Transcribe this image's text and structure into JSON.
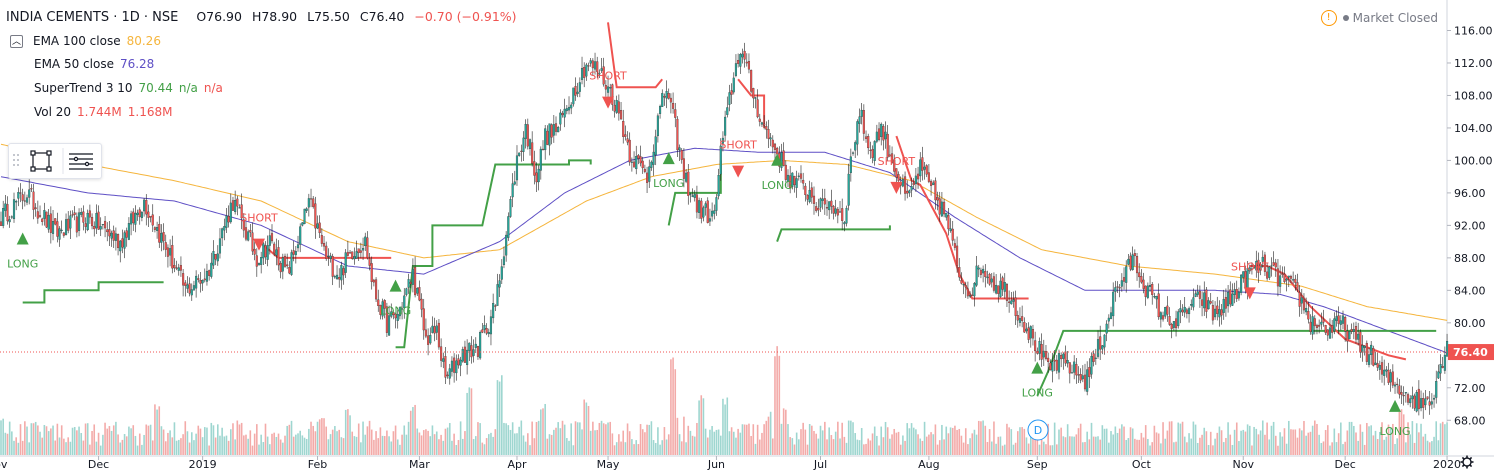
{
  "header": {
    "symbol": "INDIA CEMENTS · 1D · NSE",
    "open": "O76.90",
    "high": "H78.90",
    "low": "L75.50",
    "close": "C76.40",
    "change": "−0.70 (−0.91%)"
  },
  "market_status": {
    "icon": "warning-icon",
    "label": "Market Closed"
  },
  "indicators": [
    {
      "toggle": "chevron-up-icon",
      "label": "EMA 100 close",
      "value": "80.26",
      "color": "#f5b53d"
    },
    {
      "label": "EMA 50 close",
      "value": "76.28",
      "color": "#5e4fc5"
    },
    {
      "label": "SuperTrend 3 10",
      "value": "70.44",
      "value2": "n/a",
      "value3": "n/a",
      "color": "#43a047",
      "color2": "#ef5350"
    },
    {
      "label": "Vol 20",
      "value": "1.744M",
      "value2": "1.168M",
      "color": "#ef5350"
    }
  ],
  "toolbox": {
    "icons": [
      "grip-icon",
      "rectangle-icon",
      "lines-icon"
    ]
  },
  "last_price_label": "76.40",
  "dividend_marker": "D",
  "chart_data": {
    "type": "candlestick",
    "title": "INDIA CEMENTS · 1D · NSE",
    "x_axis": {
      "ticks": [
        "Nov",
        "Dec",
        "2019",
        "Feb",
        "Mar",
        "Apr",
        "May",
        "Jun",
        "Jul",
        "Aug",
        "Sep",
        "Oct",
        "Nov",
        "Dec",
        "2020"
      ]
    },
    "y_axis": {
      "ticks": [
        "116.00",
        "112.00",
        "108.00",
        "104.00",
        "100.00",
        "96.00",
        "92.00",
        "88.00",
        "84.00",
        "80.00",
        "76.00",
        "72.00",
        "68.00"
      ],
      "range": [
        66.5,
        118.5
      ],
      "side": "right"
    },
    "last_close": 76.4,
    "colors": {
      "up": "#26a69a",
      "down": "#ef5350",
      "ema100": "#f5b53d",
      "ema50": "#5e4fc5",
      "st_up": "#43a047",
      "st_down": "#ef5350",
      "vol_up": "#9ed6d0",
      "vol_down": "#f3aaa8"
    },
    "close_path": [
      [
        0,
        93
      ],
      [
        12,
        96
      ],
      [
        25,
        91
      ],
      [
        40,
        93
      ],
      [
        55,
        90
      ],
      [
        66,
        95
      ],
      [
        80,
        87
      ],
      [
        85,
        84
      ],
      [
        95,
        86
      ],
      [
        107,
        95
      ],
      [
        118,
        88
      ],
      [
        124,
        90
      ],
      [
        132,
        86
      ],
      [
        138,
        91
      ],
      [
        142,
        95
      ],
      [
        150,
        88
      ],
      [
        156,
        86
      ],
      [
        162,
        89
      ],
      [
        168,
        90
      ],
      [
        172,
        84
      ],
      [
        178,
        80
      ],
      [
        183,
        81
      ],
      [
        190,
        86
      ],
      [
        196,
        78
      ],
      [
        201,
        79
      ],
      [
        205,
        73
      ],
      [
        212,
        76
      ],
      [
        220,
        77
      ],
      [
        228,
        82
      ],
      [
        234,
        93
      ],
      [
        238,
        100
      ],
      [
        242,
        104
      ],
      [
        247,
        98
      ],
      [
        251,
        103
      ],
      [
        257,
        104
      ],
      [
        263,
        108
      ],
      [
        270,
        112
      ],
      [
        276,
        111
      ],
      [
        282,
        108
      ],
      [
        286,
        105
      ],
      [
        290,
        101
      ],
      [
        298,
        98
      ],
      [
        303,
        105
      ],
      [
        307,
        109
      ],
      [
        311,
        104
      ],
      [
        315,
        98
      ],
      [
        322,
        94
      ],
      [
        329,
        93
      ],
      [
        332,
        101
      ],
      [
        337,
        109
      ],
      [
        341,
        114
      ],
      [
        346,
        109
      ],
      [
        352,
        104
      ],
      [
        358,
        101
      ],
      [
        363,
        98
      ],
      [
        368,
        97
      ],
      [
        373,
        96
      ],
      [
        378,
        94
      ],
      [
        381,
        95
      ],
      [
        389,
        93
      ],
      [
        392,
        100
      ],
      [
        396,
        106
      ],
      [
        401,
        101
      ],
      [
        406,
        104
      ],
      [
        411,
        100
      ],
      [
        418,
        95
      ],
      [
        424,
        99
      ],
      [
        430,
        96
      ],
      [
        436,
        93
      ],
      [
        442,
        86
      ],
      [
        447,
        84
      ],
      [
        452,
        87
      ],
      [
        458,
        85
      ],
      [
        464,
        84
      ],
      [
        470,
        81
      ],
      [
        476,
        78
      ],
      [
        480,
        76
      ],
      [
        483,
        74
      ],
      [
        486,
        75
      ],
      [
        492,
        75
      ],
      [
        495,
        74
      ],
      [
        500,
        73
      ],
      [
        505,
        76
      ],
      [
        509,
        79
      ],
      [
        514,
        84
      ],
      [
        519,
        86
      ],
      [
        522,
        88
      ],
      [
        527,
        85
      ],
      [
        531,
        83
      ],
      [
        536,
        81
      ],
      [
        542,
        80
      ],
      [
        548,
        82
      ],
      [
        554,
        83
      ],
      [
        559,
        81
      ],
      [
        564,
        82
      ],
      [
        570,
        84
      ],
      [
        575,
        86
      ],
      [
        581,
        87
      ],
      [
        587,
        86
      ],
      [
        592,
        85
      ],
      [
        597,
        84
      ],
      [
        601,
        82
      ],
      [
        604,
        80
      ],
      [
        608,
        80
      ],
      [
        613,
        79
      ],
      [
        618,
        80
      ],
      [
        624,
        78
      ],
      [
        628,
        77
      ],
      [
        632,
        76
      ],
      [
        636,
        74
      ],
      [
        640,
        73
      ],
      [
        645,
        72
      ],
      [
        650,
        71
      ],
      [
        655,
        70
      ],
      [
        660,
        71
      ],
      [
        664,
        75
      ],
      [
        667,
        77
      ]
    ],
    "ema100_path": [
      [
        0,
        102
      ],
      [
        40,
        99.5
      ],
      [
        80,
        97.5
      ],
      [
        120,
        95
      ],
      [
        160,
        90
      ],
      [
        195,
        88
      ],
      [
        230,
        89
      ],
      [
        270,
        95
      ],
      [
        300,
        98
      ],
      [
        330,
        99.5
      ],
      [
        360,
        100
      ],
      [
        390,
        99.5
      ],
      [
        420,
        97.5
      ],
      [
        450,
        93
      ],
      [
        480,
        89
      ],
      [
        520,
        87
      ],
      [
        560,
        86
      ],
      [
        600,
        84.5
      ],
      [
        630,
        82
      ],
      [
        667,
        80.3
      ]
    ],
    "ema50_path": [
      [
        0,
        98
      ],
      [
        40,
        96
      ],
      [
        80,
        95
      ],
      [
        120,
        92
      ],
      [
        160,
        87
      ],
      [
        195,
        86
      ],
      [
        230,
        90
      ],
      [
        260,
        96
      ],
      [
        290,
        100
      ],
      [
        320,
        101.5
      ],
      [
        350,
        101
      ],
      [
        380,
        101
      ],
      [
        410,
        98.5
      ],
      [
        440,
        93
      ],
      [
        470,
        88
      ],
      [
        500,
        84
      ],
      [
        530,
        84
      ],
      [
        560,
        84
      ],
      [
        590,
        83.5
      ],
      [
        610,
        82
      ],
      [
        640,
        79
      ],
      [
        667,
        76.3
      ]
    ],
    "supertrend": [
      {
        "trend": "up",
        "points": [
          [
            10,
            82.5
          ],
          [
            20,
            82.5
          ],
          [
            20,
            84
          ],
          [
            45,
            84
          ],
          [
            45,
            85
          ],
          [
            75,
            85
          ],
          [
            75,
            85
          ]
        ]
      },
      {
        "trend": "down",
        "points": [
          [
            119,
            90
          ],
          [
            128,
            88
          ],
          [
            134,
            88
          ],
          [
            134,
            88
          ],
          [
            180,
            88
          ]
        ]
      },
      {
        "trend": "up",
        "points": [
          [
            182,
            77
          ],
          [
            186,
            77
          ],
          [
            190,
            87
          ],
          [
            199,
            87
          ],
          [
            199,
            92
          ],
          [
            222,
            92
          ],
          [
            228,
            99.5
          ],
          [
            262,
            99.5
          ],
          [
            262,
            100
          ],
          [
            272,
            100
          ],
          [
            272,
            99.5
          ]
        ]
      },
      {
        "trend": "down",
        "points": [
          [
            280,
            117
          ],
          [
            284,
            109
          ],
          [
            302,
            109
          ],
          [
            305,
            110
          ]
        ]
      },
      {
        "trend": "up",
        "points": [
          [
            308,
            92
          ],
          [
            311,
            96
          ],
          [
            332,
            96
          ],
          [
            332,
            100
          ]
        ]
      },
      {
        "trend": "down",
        "points": [
          [
            340,
            110
          ],
          [
            346,
            108
          ],
          [
            352,
            108
          ],
          [
            352,
            104
          ]
        ]
      },
      {
        "trend": "up",
        "points": [
          [
            358,
            90
          ],
          [
            360,
            91.5
          ],
          [
            410,
            91.5
          ],
          [
            410,
            92
          ]
        ]
      },
      {
        "trend": "down",
        "points": [
          [
            413,
            103
          ],
          [
            420,
            97.5
          ],
          [
            424,
            97
          ],
          [
            430,
            94
          ],
          [
            436,
            91
          ],
          [
            442,
            86
          ],
          [
            448,
            83
          ],
          [
            474,
            83
          ]
        ]
      },
      {
        "trend": "up",
        "points": [
          [
            478,
            71
          ],
          [
            483,
            74
          ],
          [
            490,
            79
          ],
          [
            660,
            79
          ],
          [
            662,
            79
          ]
        ]
      },
      {
        "trend": "down",
        "points": [
          [
            576,
            87
          ],
          [
            584,
            87
          ],
          [
            592,
            86
          ],
          [
            598,
            84
          ],
          [
            604,
            82
          ],
          [
            612,
            80
          ],
          [
            620,
            78
          ],
          [
            630,
            77
          ],
          [
            640,
            76
          ],
          [
            648,
            75.5
          ]
        ]
      }
    ],
    "signals": [
      {
        "label": "LONG",
        "type": "long",
        "x": 10,
        "price": 90.5
      },
      {
        "label": "SHORT",
        "type": "short",
        "x": 119,
        "price": 89.5
      },
      {
        "label": "LONG",
        "type": "long",
        "x": 182,
        "price": 84.7
      },
      {
        "label": "SHORT",
        "type": "short",
        "x": 280,
        "price": 107
      },
      {
        "label": "LONG",
        "type": "long",
        "x": 308,
        "price": 100.4
      },
      {
        "label": "SHORT",
        "type": "short",
        "x": 340,
        "price": 98.5
      },
      {
        "label": "LONG",
        "type": "long",
        "x": 358,
        "price": 100.2
      },
      {
        "label": "SHORT",
        "type": "short",
        "x": 413,
        "price": 96.5
      },
      {
        "label": "LONG",
        "type": "long",
        "x": 478,
        "price": 74.6
      },
      {
        "label": "SHORT",
        "type": "short",
        "x": 576,
        "price": 83.5
      },
      {
        "label": "LONG",
        "type": "long",
        "x": 643,
        "price": 69.9
      }
    ],
    "volume_peaks": [
      [
        0,
        0.35
      ],
      [
        15,
        0.3
      ],
      [
        35,
        0.25
      ],
      [
        72,
        0.45
      ],
      [
        110,
        0.3
      ],
      [
        148,
        0.35
      ],
      [
        160,
        0.4
      ],
      [
        190,
        0.45
      ],
      [
        216,
        0.6
      ],
      [
        230,
        0.7
      ],
      [
        250,
        0.45
      ],
      [
        270,
        0.5
      ],
      [
        310,
        0.85
      ],
      [
        323,
        0.55
      ],
      [
        334,
        0.5
      ],
      [
        358,
        0.95
      ],
      [
        392,
        0.3
      ],
      [
        452,
        0.3
      ],
      [
        520,
        0.15
      ],
      [
        600,
        0.25
      ],
      [
        646,
        0.4
      ],
      [
        666,
        0.3
      ]
    ]
  }
}
